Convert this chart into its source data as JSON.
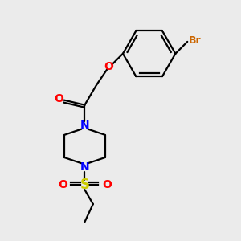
{
  "bg_color": "#ebebeb",
  "bond_color": "#000000",
  "n_color": "#0000ff",
  "o_color": "#ff0000",
  "s_color": "#cccc00",
  "br_color": "#cc6600",
  "line_width": 1.6,
  "figsize": [
    3.0,
    3.0
  ],
  "dpi": 100,
  "xlim": [
    0,
    10
  ],
  "ylim": [
    0,
    10
  ]
}
